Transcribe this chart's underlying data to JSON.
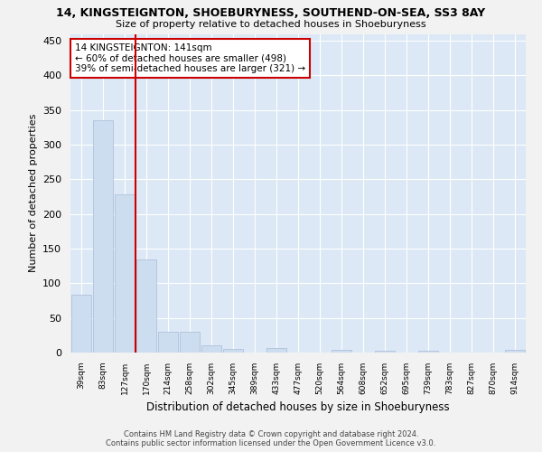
{
  "title": "14, KINGSTEIGNTON, SHOEBURYNESS, SOUTHEND-ON-SEA, SS3 8AY",
  "subtitle": "Size of property relative to detached houses in Shoeburyness",
  "xlabel": "Distribution of detached houses by size in Shoeburyness",
  "ylabel": "Number of detached properties",
  "footer_line1": "Contains HM Land Registry data © Crown copyright and database right 2024.",
  "footer_line2": "Contains public sector information licensed under the Open Government Licence v3.0.",
  "categories": [
    "39sqm",
    "83sqm",
    "127sqm",
    "170sqm",
    "214sqm",
    "258sqm",
    "302sqm",
    "345sqm",
    "389sqm",
    "433sqm",
    "477sqm",
    "520sqm",
    "564sqm",
    "608sqm",
    "652sqm",
    "695sqm",
    "739sqm",
    "783sqm",
    "827sqm",
    "870sqm",
    "914sqm"
  ],
  "values": [
    84,
    335,
    229,
    135,
    30,
    30,
    10,
    5,
    0,
    6,
    0,
    0,
    4,
    0,
    3,
    0,
    2,
    0,
    0,
    0,
    4
  ],
  "bar_color": "#ccddf0",
  "bar_edge_color": "#aabbd8",
  "ylim": [
    0,
    460
  ],
  "yticks": [
    0,
    50,
    100,
    150,
    200,
    250,
    300,
    350,
    400,
    450
  ],
  "annotation_text": "14 KINGSTEIGNTON: 141sqm\n← 60% of detached houses are smaller (498)\n39% of semi-detached houses are larger (321) →",
  "vline_x_index": 2.5,
  "vline_color": "#cc0000",
  "annotation_box_color": "#cc0000",
  "background_color": "#f2f2f2",
  "plot_bg_color": "#dce8f5"
}
